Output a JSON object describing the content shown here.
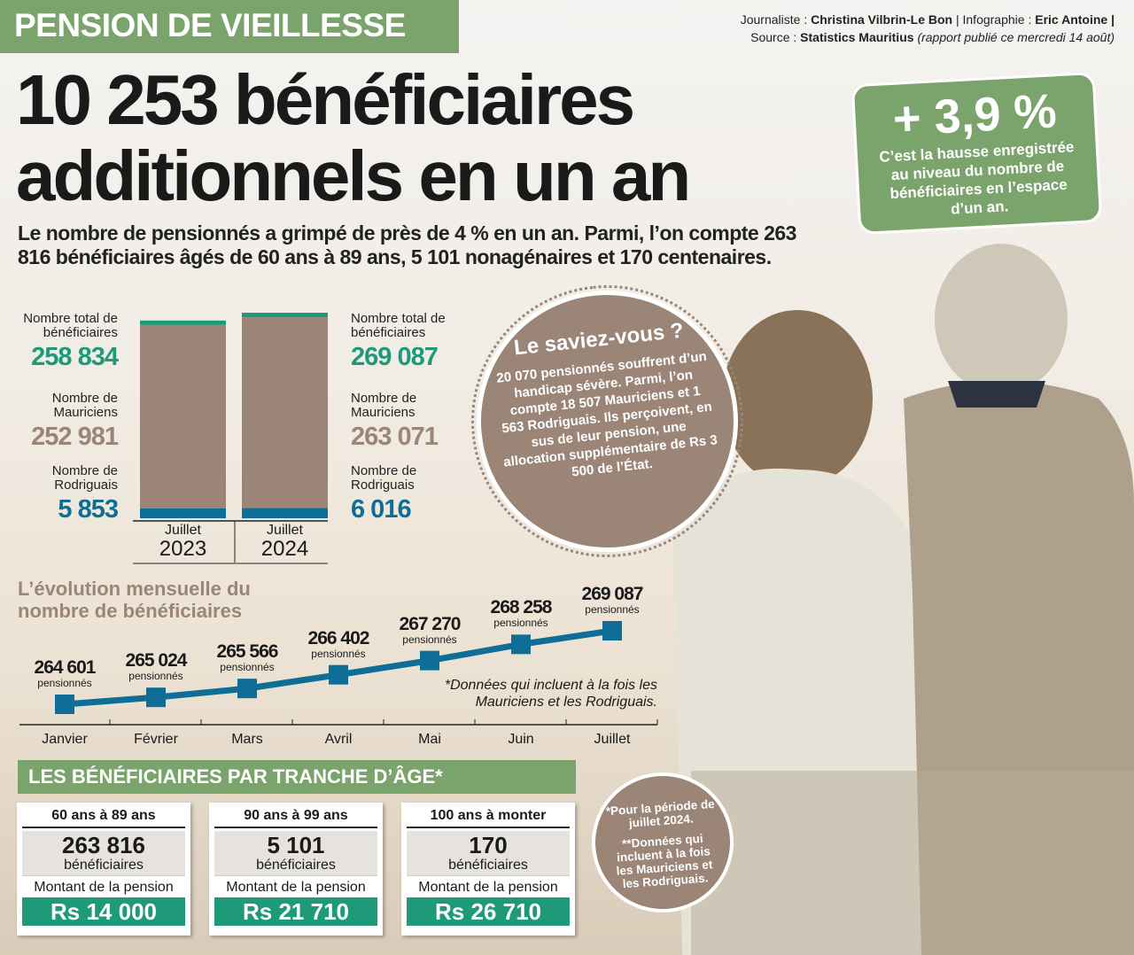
{
  "kicker": "PENSION DE VIEILLESSE",
  "credits": {
    "journalist_label": "Journaliste :",
    "journalist": "Christina Vilbrin-Le Bon",
    "infographic_label": "| Infographie :",
    "infographic": "Eric Antoine |",
    "source_label": "Source :",
    "source": "Statistics Mauritius",
    "source_note": "(rapport publié ce mercredi 14 août)"
  },
  "headline": "10 253 bénéficiaires additionnels en un an",
  "lead": "Le nombre de pensionnés a grimpé de près de 4 % en un an. Parmi, l’on compte 263 816 bénéficiaires âgés de 60 ans à 89 ans, 5 101 nonagénaires et 170 centenaires.",
  "highlight": {
    "value": "+ 3,9 %",
    "text": "C’est la hausse enregistrée au niveau du nombre de bénéficiaires en l’espace d’un an."
  },
  "did_you_know": {
    "title": "Le saviez-vous ?",
    "body": "20 070 pensionnés souffrent d’un handicap sévère. Parmi, l’on compte 18 507 Mauriciens et 1 563 Rodriguais. Ils perçoivent, en sus de leur pension, une allocation supplémentaire de Rs 3 500 de l’État."
  },
  "footnote": {
    "line1": "*Pour la période de juillet 2024.",
    "line2": "**Données qui incluent à la fois les Mauriciens et les Rodriguais."
  },
  "colors": {
    "green": "#7ba46c",
    "teal": "#1e9a78",
    "brown": "#9a8577",
    "blue": "#0e6e96"
  },
  "chart_data": [
    {
      "type": "bar",
      "stacked": true,
      "categories": [
        {
          "month": "Juillet",
          "year": "2023"
        },
        {
          "month": "Juillet",
          "year": "2024"
        }
      ],
      "series": [
        {
          "name": "Nombre de Rodriguais",
          "label_2023": "Nombre de Rodriguais",
          "values": [
            5853,
            6016
          ],
          "display": [
            "5 853",
            "6 016"
          ],
          "color": "#0e6e96"
        },
        {
          "name": "Nombre de Mauriciens",
          "values": [
            252981,
            263071
          ],
          "display": [
            "252 981",
            "263 071"
          ],
          "color": "#9a8577"
        },
        {
          "name": "Nombre total de bénéficiaires",
          "values": [
            258834,
            269087
          ],
          "display": [
            "258 834",
            "269 087"
          ],
          "color": "#1e9a78"
        }
      ]
    },
    {
      "type": "line",
      "title": "L’évolution mensuelle du nombre de bénéficiaires",
      "categories": [
        "Janvier",
        "Février",
        "Mars",
        "Avril",
        "Mai",
        "Juin",
        "Juillet"
      ],
      "values": [
        264601,
        265024,
        265566,
        266402,
        267270,
        268258,
        269087
      ],
      "display": [
        "264 601",
        "265 024",
        "265 566",
        "266 402",
        "267 270",
        "268 258",
        "269 087"
      ],
      "unit": "pensionnés",
      "color": "#0e6e96",
      "note": "*Données qui incluent à la fois les Mauriciens et les Rodriguais."
    }
  ],
  "age_section": {
    "title": "LES BÉNÉFICIAIRES PAR TRANCHE D’ÂGE*",
    "cards": [
      {
        "range": "60 ans à 89 ans",
        "count": "263 816",
        "unit": "bénéficiaires",
        "amount_label": "Montant de la pension",
        "amount": "Rs 14 000"
      },
      {
        "range": "90 ans à 99 ans",
        "count": "5 101",
        "unit": "bénéficiaires",
        "amount_label": "Montant de la pension",
        "amount": "Rs 21 710"
      },
      {
        "range": "100 ans à monter",
        "count": "170",
        "unit": "bénéficiaires",
        "amount_label": "Montant de la pension",
        "amount": "Rs 26 710"
      }
    ]
  }
}
